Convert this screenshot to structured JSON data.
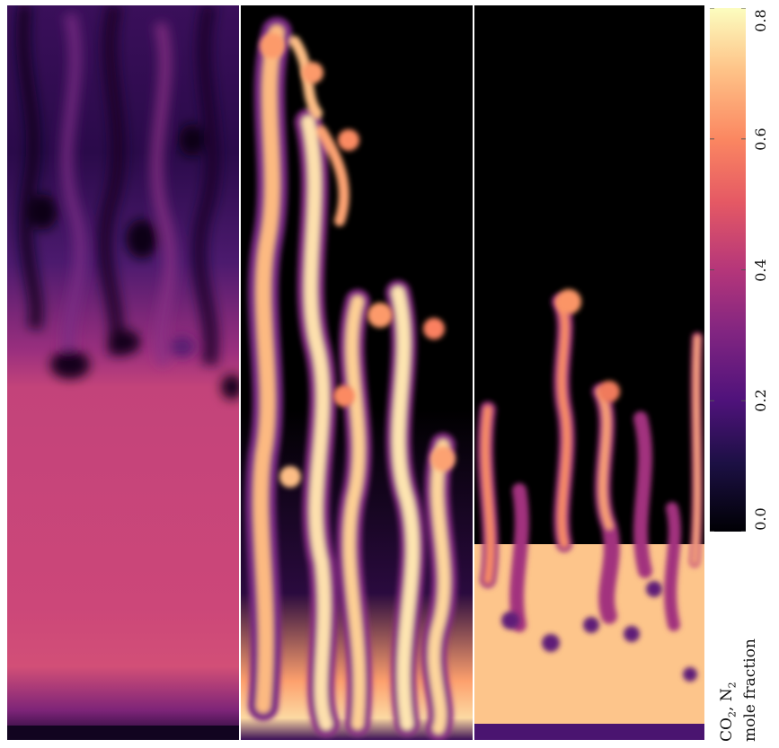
{
  "figure": {
    "panels": [
      {
        "name": "panel-left",
        "style": "diffuse"
      },
      {
        "name": "panel-middle",
        "style": "plumes"
      },
      {
        "name": "panel-right",
        "style": "fingers"
      }
    ],
    "colormap": "magma",
    "colors": {
      "background": "#000000",
      "dark_purple": "#3b0f70",
      "purple": "#8c2981",
      "magenta": "#c83e73",
      "orange": "#fe9f6d",
      "pale": "#fcfdbf"
    }
  },
  "colorbar": {
    "ticks": [
      "0.0",
      "0.2",
      "0.4",
      "0.6",
      "0.8"
    ],
    "tick_values": [
      0.0,
      0.2,
      0.4,
      0.6,
      0.8
    ],
    "range": [
      0.0,
      0.8
    ],
    "title_line1_main": "CO",
    "title_line1_sub1": "2",
    "title_line1_mid": ", N",
    "title_line1_sub2": "2",
    "title_line2": "mole fraction"
  }
}
